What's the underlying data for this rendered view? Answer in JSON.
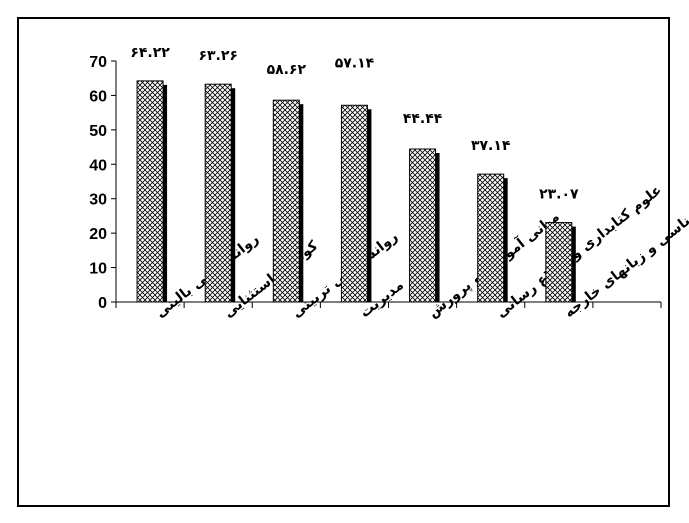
{
  "chart_data": {
    "type": "bar",
    "categories": [
      "روانشناسی بالینی",
      "کودکان استثنایی",
      "روانشناسی تربیتی",
      "مدیریت",
      "مبانی آموزش و پرورش",
      "علوم کتابداری و اطلاع رسانی",
      "زبانشناسی و زبانهای خارجه"
    ],
    "values": [
      64.22,
      63.26,
      58.62,
      57.14,
      44.44,
      37.14,
      23.07
    ],
    "data_labels": [
      "۶۴.۲۲",
      "۶۳.۲۶",
      "۵۸.۶۲",
      "۵۷.۱۴",
      "۴۴.۴۴",
      "۳۷.۱۴",
      "۲۳.۰۷"
    ],
    "yticks": [
      "0",
      "10",
      "20",
      "30",
      "40",
      "50",
      "60",
      "70"
    ],
    "ylim": [
      0,
      70
    ],
    "category_slots": 8,
    "grid": false,
    "legend": "none",
    "bar_pattern": "crosshatch",
    "bar_fill": "#ffffff",
    "bar_edge": "#000000",
    "shadow_color": "#000000"
  }
}
